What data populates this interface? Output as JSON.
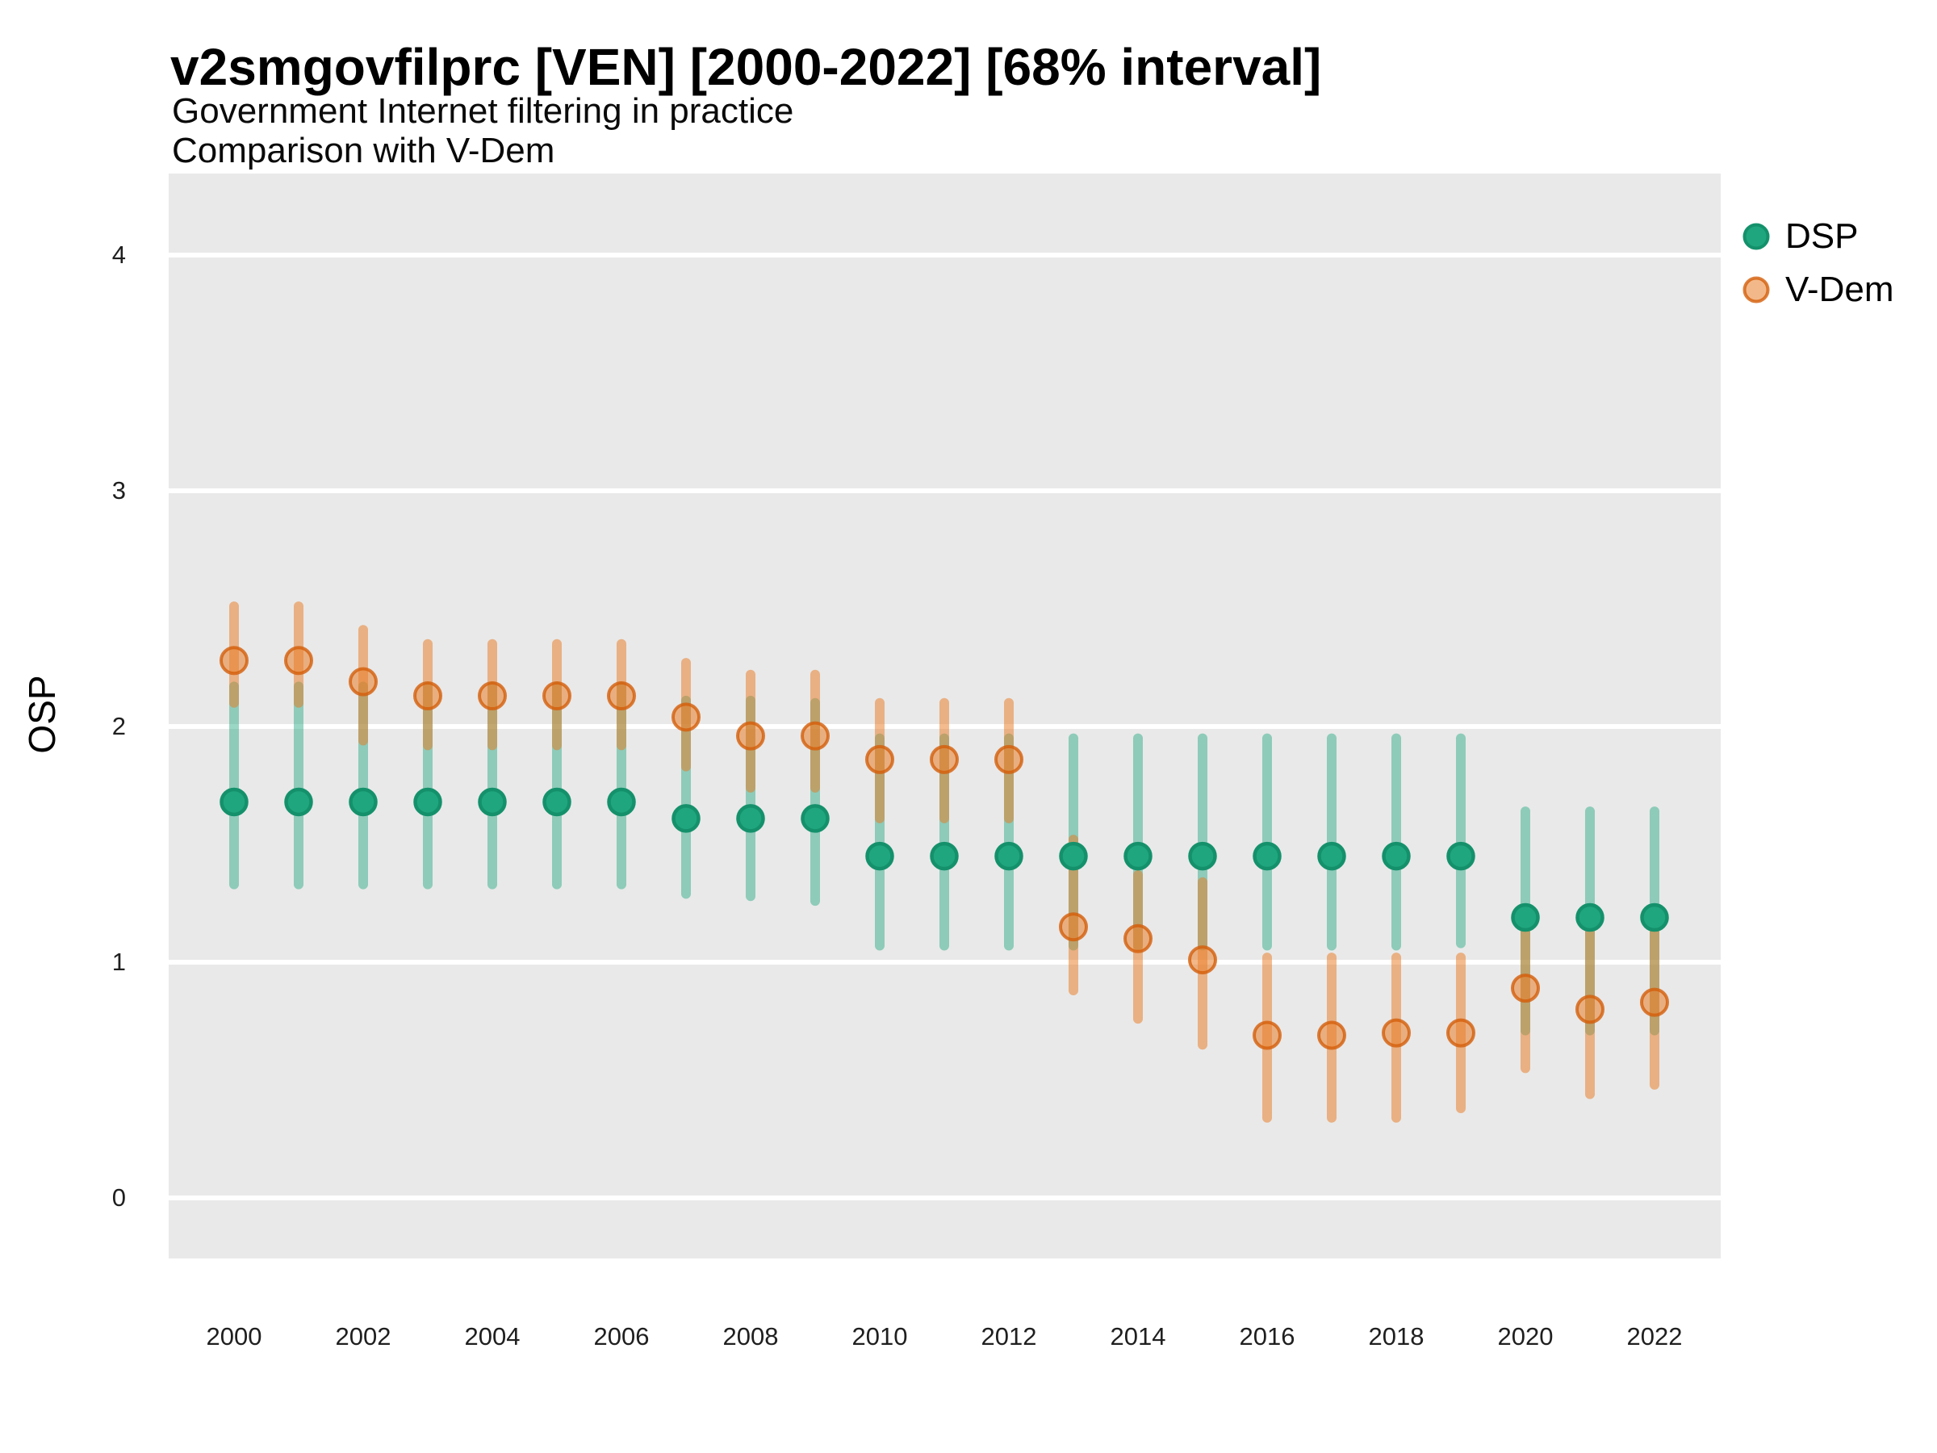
{
  "header": {
    "title": "v2smgovfilprc [VEN] [2000-2022] [68% interval]",
    "subtitle_line1": "Government Internet filtering in practice",
    "subtitle_line2": "Comparison with V-Dem"
  },
  "axes": {
    "y_title": "OSP",
    "y_ticks": [
      0,
      1,
      2,
      3,
      4
    ],
    "x_ticks": [
      2000,
      2002,
      2004,
      2006,
      2008,
      2010,
      2012,
      2014,
      2016,
      2018,
      2020,
      2022
    ]
  },
  "legend": {
    "items": [
      {
        "label": "DSP",
        "marker": "solid-green-circle"
      },
      {
        "label": "V-Dem",
        "marker": "translucent-orange-circle"
      }
    ]
  },
  "colors": {
    "panel_bg": "#e9e9e9",
    "gridline": "#ffffff",
    "dsp_fill": "#1FA67E",
    "dsp_stroke": "#14916B",
    "dsp_line": "rgba(31,166,126,0.45)",
    "vdem_fill": "rgba(233,125,40,0.55)",
    "vdem_stroke": "rgba(211,94,10,0.8)",
    "vdem_line": "rgba(233,119,30,0.5)",
    "text": "#000000"
  },
  "chart_data": {
    "type": "scatter",
    "variant": "pointrange",
    "title": "v2smgovfilprc [VEN] [2000-2022] [68% interval]",
    "subtitle": [
      "Government Internet filtering in practice",
      "Comparison with V-Dem"
    ],
    "interval": "68%",
    "xlabel": "",
    "ylabel": "OSP",
    "ylim": [
      -0.26,
      4.35
    ],
    "xlim": [
      1999,
      2023
    ],
    "grid": "horizontal-major-white-on-grey",
    "legend_position": "right-top",
    "years": [
      2000,
      2001,
      2002,
      2003,
      2004,
      2005,
      2006,
      2007,
      2008,
      2009,
      2010,
      2011,
      2012,
      2013,
      2014,
      2015,
      2016,
      2017,
      2018,
      2019,
      2020,
      2021,
      2022
    ],
    "series": [
      {
        "name": "DSP",
        "est": [
          1.68,
          1.68,
          1.68,
          1.68,
          1.68,
          1.68,
          1.68,
          1.61,
          1.61,
          1.61,
          1.45,
          1.45,
          1.45,
          1.45,
          1.45,
          1.45,
          1.45,
          1.45,
          1.45,
          1.45,
          1.19,
          1.19,
          1.19
        ],
        "lo": [
          1.33,
          1.33,
          1.33,
          1.33,
          1.33,
          1.33,
          1.33,
          1.29,
          1.28,
          1.26,
          1.07,
          1.07,
          1.07,
          1.07,
          1.07,
          1.07,
          1.07,
          1.07,
          1.07,
          1.08,
          0.71,
          0.71,
          0.71
        ],
        "hi": [
          2.17,
          2.17,
          2.17,
          2.17,
          2.17,
          2.17,
          2.17,
          2.11,
          2.11,
          2.1,
          1.95,
          1.95,
          1.95,
          1.95,
          1.95,
          1.95,
          1.95,
          1.95,
          1.95,
          1.95,
          1.64,
          1.64,
          1.64
        ]
      },
      {
        "name": "V-Dem",
        "est": [
          2.28,
          2.28,
          2.19,
          2.13,
          2.13,
          2.13,
          2.13,
          2.04,
          1.96,
          1.96,
          1.86,
          1.86,
          1.86,
          1.15,
          1.1,
          1.01,
          0.69,
          0.69,
          0.7,
          0.7,
          0.89,
          0.8,
          0.83
        ],
        "lo": [
          2.1,
          2.1,
          1.94,
          1.92,
          1.92,
          1.92,
          1.92,
          1.83,
          1.74,
          1.74,
          1.61,
          1.61,
          1.61,
          0.88,
          0.76,
          0.65,
          0.34,
          0.34,
          0.34,
          0.38,
          0.55,
          0.44,
          0.48
        ],
        "hi": [
          2.51,
          2.51,
          2.41,
          2.35,
          2.35,
          2.35,
          2.35,
          2.27,
          2.22,
          2.22,
          2.1,
          2.1,
          2.1,
          1.52,
          1.37,
          1.34,
          1.02,
          1.02,
          1.02,
          1.02,
          1.22,
          1.15,
          1.18
        ]
      }
    ]
  }
}
